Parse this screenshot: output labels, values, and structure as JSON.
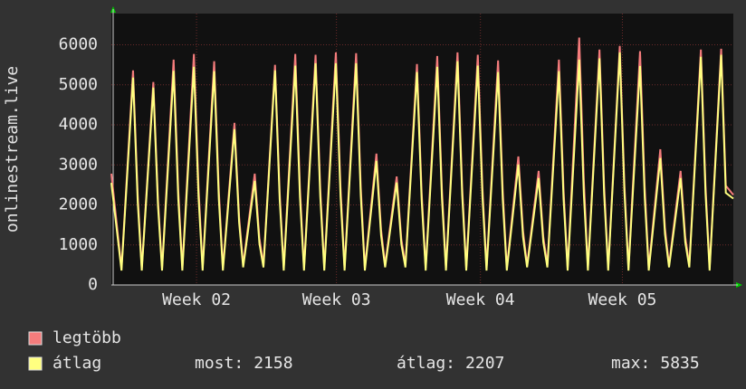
{
  "chart_data": {
    "type": "line",
    "y_label": "onlinestream.live",
    "xlim": [
      0,
      30.67
    ],
    "ylim": [
      0,
      6780
    ],
    "xticks": [
      {
        "value": 4.2,
        "label": "Week 02"
      },
      {
        "value": 11.1,
        "label": "Week 03"
      },
      {
        "value": 18.2,
        "label": "Week 04"
      },
      {
        "value": 25.2,
        "label": "Week 05"
      }
    ],
    "yticks": [
      0,
      1000,
      2000,
      3000,
      4000,
      5000,
      6000
    ],
    "grid": true,
    "x": [
      0,
      0.5,
      1.07,
      1.3,
      1.5,
      2.07,
      2.3,
      2.5,
      3.07,
      3.3,
      3.5,
      4.07,
      4.3,
      4.5,
      5.07,
      5.3,
      5.5,
      6.07,
      6.3,
      6.5,
      7.07,
      7.3,
      7.5,
      8.07,
      8.3,
      8.5,
      9.07,
      9.3,
      9.5,
      10.07,
      10.3,
      10.5,
      11.07,
      11.3,
      11.5,
      12.07,
      12.3,
      12.5,
      13.07,
      13.3,
      13.5,
      14.07,
      14.3,
      14.5,
      15.07,
      15.3,
      15.5,
      16.07,
      16.3,
      16.5,
      17.07,
      17.3,
      17.5,
      18.07,
      18.3,
      18.5,
      19.07,
      19.3,
      19.5,
      20.07,
      20.3,
      20.5,
      21.07,
      21.3,
      21.5,
      22.07,
      22.3,
      22.5,
      23.07,
      23.3,
      23.5,
      24.07,
      24.3,
      24.5,
      25.07,
      25.3,
      25.5,
      26.07,
      26.3,
      26.5,
      27.07,
      27.3,
      27.5,
      28.07,
      28.3,
      28.5,
      29.07,
      29.3,
      29.5,
      30.07,
      30.3,
      30.67
    ],
    "series": [
      {
        "name": "legtöbb",
        "color": "#f47c7c",
        "values": [
          2780,
          420,
          5360,
          2250,
          420,
          5070,
          2130,
          420,
          5630,
          2360,
          420,
          5770,
          2420,
          420,
          5590,
          2350,
          420,
          4050,
          1700,
          500,
          2780,
          1170,
          500,
          5500,
          2310,
          420,
          5770,
          2420,
          420,
          5750,
          2420,
          420,
          5810,
          2440,
          420,
          5790,
          2430,
          420,
          3280,
          1380,
          500,
          2710,
          1140,
          500,
          5520,
          2320,
          420,
          5720,
          2400,
          420,
          5810,
          2440,
          420,
          5750,
          2420,
          420,
          5610,
          2360,
          420,
          3210,
          1350,
          500,
          2850,
          1200,
          500,
          5630,
          2360,
          420,
          6180,
          2600,
          420,
          5880,
          2470,
          420,
          5970,
          2510,
          420,
          5840,
          2450,
          420,
          3390,
          1420,
          500,
          2850,
          1200,
          500,
          5880,
          2470,
          420,
          5900,
          2480,
          2250
        ]
      },
      {
        "name": "átlag",
        "color": "#ffff80",
        "values": [
          2550,
          360,
          5180,
          2070,
          360,
          4930,
          1970,
          360,
          5350,
          2140,
          360,
          5450,
          2180,
          360,
          5340,
          2140,
          360,
          3890,
          1560,
          440,
          2600,
          1040,
          440,
          5360,
          2140,
          360,
          5480,
          2190,
          360,
          5540,
          2220,
          360,
          5540,
          2220,
          360,
          5540,
          2220,
          360,
          3100,
          1240,
          440,
          2560,
          1020,
          440,
          5320,
          2130,
          360,
          5450,
          2180,
          360,
          5590,
          2240,
          360,
          5480,
          2190,
          360,
          5320,
          2130,
          360,
          3010,
          1200,
          440,
          2670,
          1070,
          440,
          5340,
          2140,
          360,
          5630,
          2250,
          360,
          5660,
          2260,
          360,
          5810,
          2320,
          360,
          5470,
          2190,
          360,
          3170,
          1270,
          440,
          2670,
          1070,
          440,
          5700,
          2280,
          360,
          5750,
          2300,
          2158
        ]
      }
    ],
    "stats": [
      {
        "label": "most:",
        "value": 2158
      },
      {
        "label": "átlag:",
        "value": 2207
      },
      {
        "label": "max:",
        "value": 5835
      }
    ]
  }
}
